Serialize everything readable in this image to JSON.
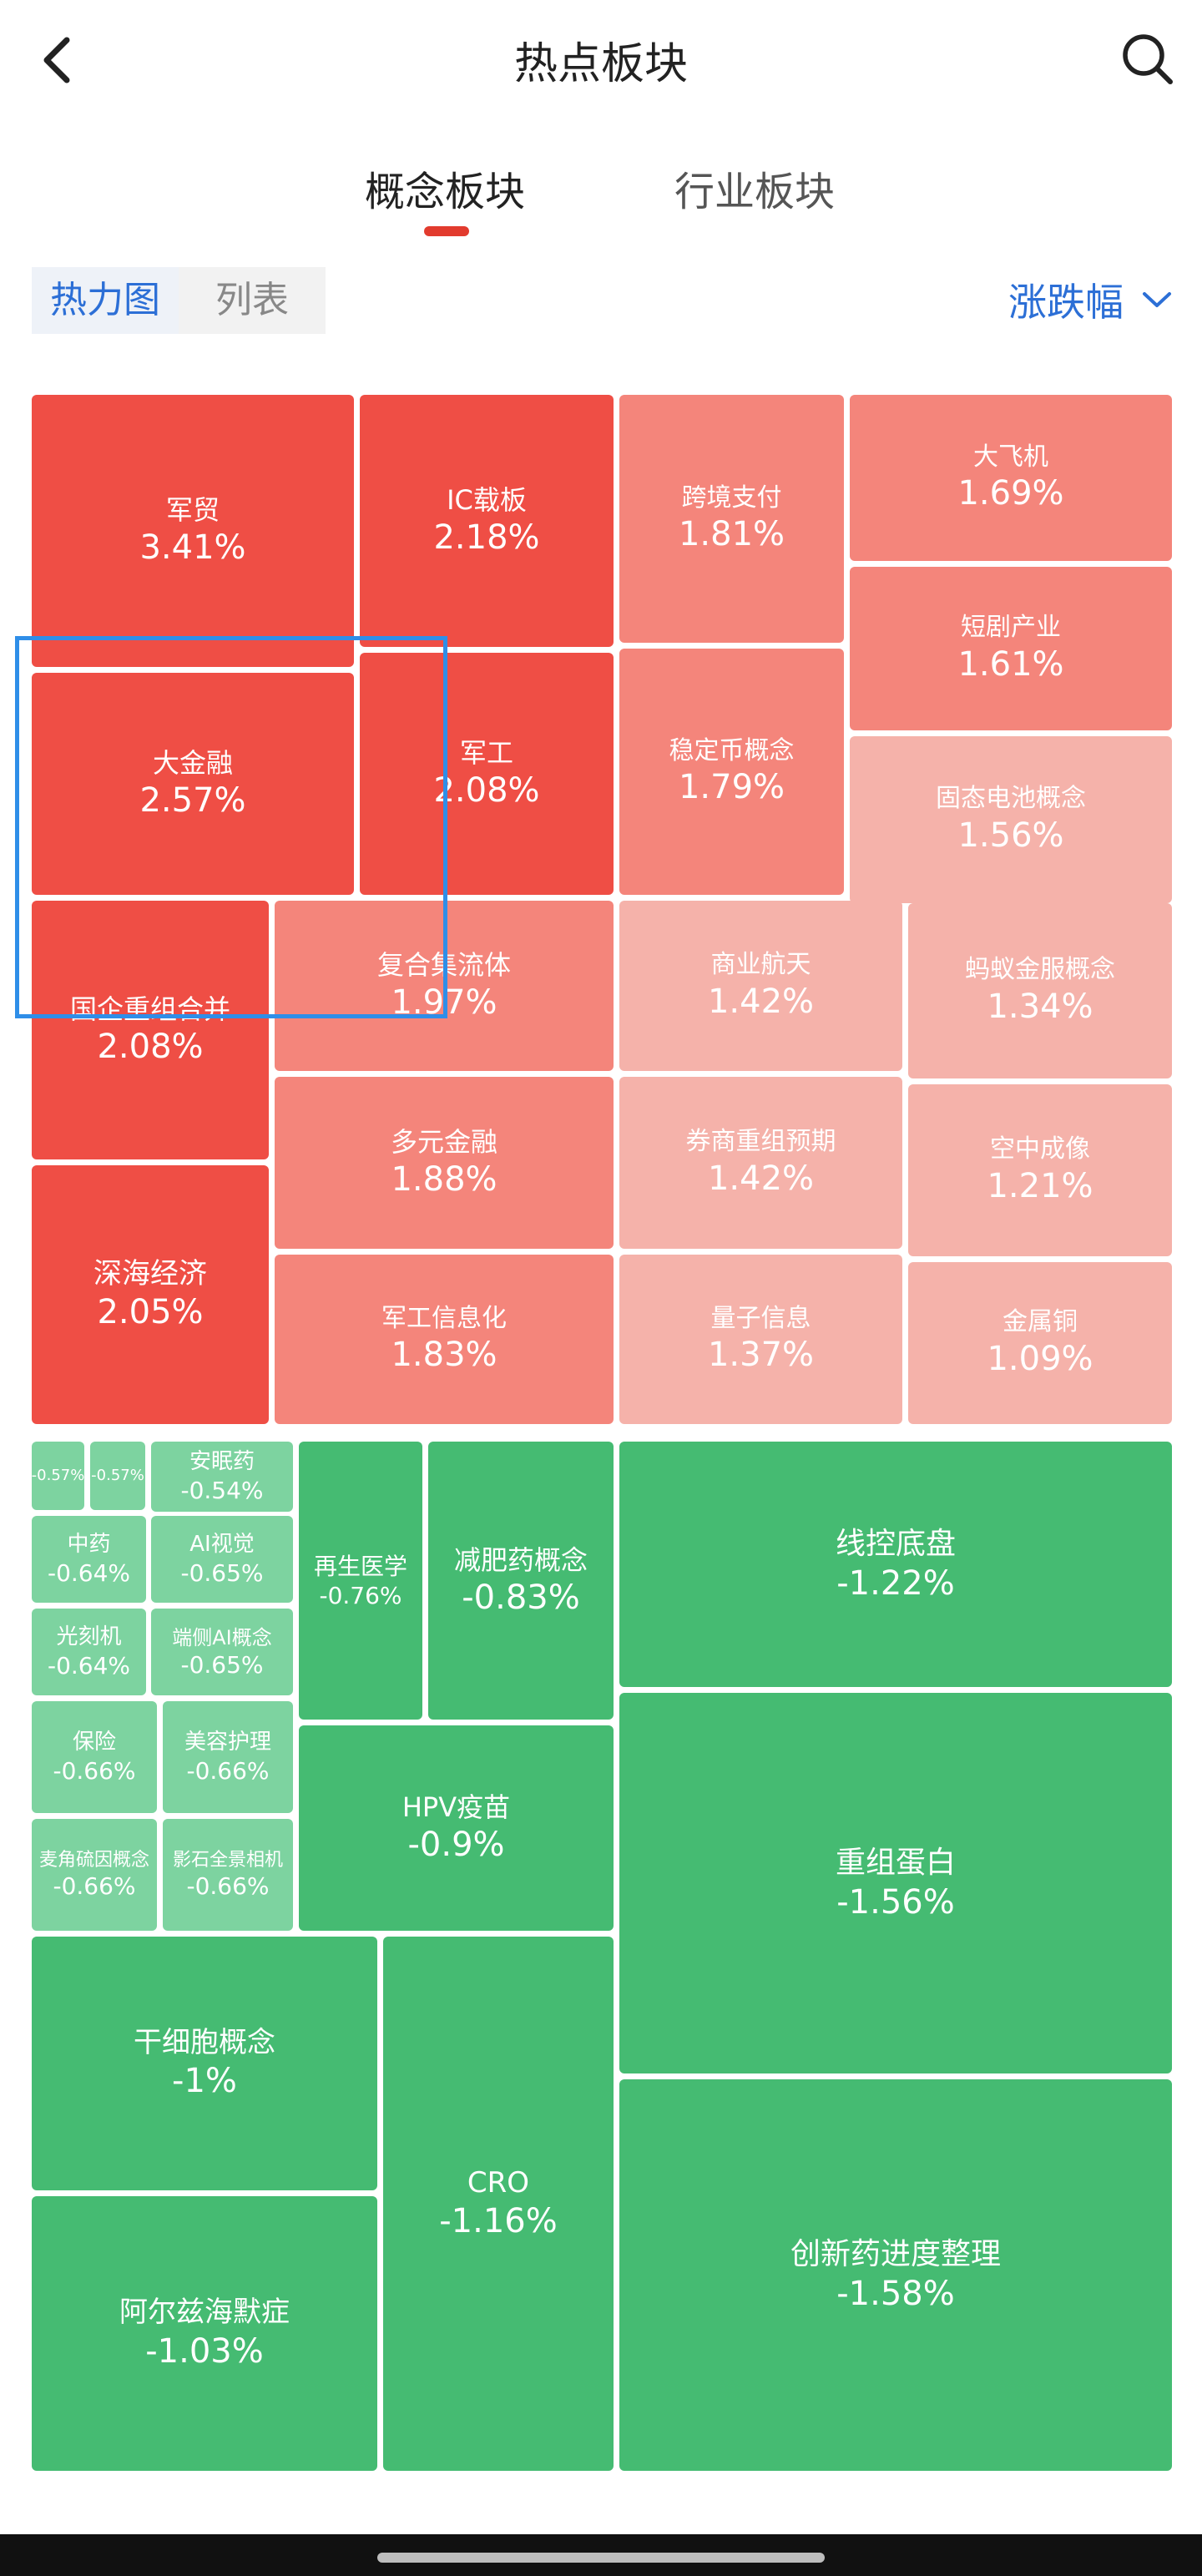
{
  "header": {
    "title": "热点板块"
  },
  "tabs": [
    {
      "label": "概念板块",
      "active": true
    },
    {
      "label": "行业板块",
      "active": false
    }
  ],
  "view_toggle": [
    {
      "label": "热力图",
      "active": true
    },
    {
      "label": "列表",
      "active": false
    }
  ],
  "sort": {
    "label": "涨跌幅"
  },
  "colors": {
    "accent_blue": "#2c6fd6",
    "tab_underline": "#e23b2e",
    "up_strong": "#ef4e45",
    "up_mid": "#f4857b",
    "up_light": "#f5b2aa",
    "down_strong": "#45bb72",
    "down_light": "#7dd3a0",
    "selection_border": "#2f8ee8"
  },
  "tiles": [
    {
      "name": "军贸",
      "value": "3.41%"
    },
    {
      "name": "IC载板",
      "value": "2.18%"
    },
    {
      "name": "跨境支付",
      "value": "1.81%"
    },
    {
      "name": "大飞机",
      "value": "1.69%"
    },
    {
      "name": "短剧产业",
      "value": "1.61%"
    },
    {
      "name": "大金融",
      "value": "2.57%"
    },
    {
      "name": "军工",
      "value": "2.08%"
    },
    {
      "name": "稳定币概念",
      "value": "1.79%"
    },
    {
      "name": "固态电池概念",
      "value": "1.56%"
    },
    {
      "name": "国企重组合并",
      "value": "2.08%"
    },
    {
      "name": "复合集流体",
      "value": "1.97%"
    },
    {
      "name": "商业航天",
      "value": "1.42%"
    },
    {
      "name": "蚂蚁金服概念",
      "value": "1.34%"
    },
    {
      "name": "多元金融",
      "value": "1.88%"
    },
    {
      "name": "券商重组预期",
      "value": "1.42%"
    },
    {
      "name": "空中成像",
      "value": "1.21%"
    },
    {
      "name": "深海经济",
      "value": "2.05%"
    },
    {
      "name": "军工信息化",
      "value": "1.83%"
    },
    {
      "name": "量子信息",
      "value": "1.37%"
    },
    {
      "name": "金属铜",
      "value": "1.09%"
    },
    {
      "name": "",
      "value": "-0.57%"
    },
    {
      "name": "",
      "value": "-0.57%"
    },
    {
      "name": "安眠药",
      "value": "-0.54%"
    },
    {
      "name": "中药",
      "value": "-0.64%"
    },
    {
      "name": "AI视觉",
      "value": "-0.65%"
    },
    {
      "name": "光刻机",
      "value": "-0.64%"
    },
    {
      "name": "端侧AI概念",
      "value": "-0.65%"
    },
    {
      "name": "保险",
      "value": "-0.66%"
    },
    {
      "name": "美容护理",
      "value": "-0.66%"
    },
    {
      "name": "麦角硫因概念",
      "value": "-0.66%"
    },
    {
      "name": "影石全景相机",
      "value": "-0.66%"
    },
    {
      "name": "再生医学",
      "value": "-0.76%"
    },
    {
      "name": "减肥药概念",
      "value": "-0.83%"
    },
    {
      "name": "HPV疫苗",
      "value": "-0.9%"
    },
    {
      "name": "线控底盘",
      "value": "-1.22%"
    },
    {
      "name": "重组蛋白",
      "value": "-1.56%"
    },
    {
      "name": "干细胞概念",
      "value": "-1%"
    },
    {
      "name": "CRO",
      "value": "-1.16%"
    },
    {
      "name": "阿尔兹海默症",
      "value": "-1.03%"
    },
    {
      "name": "创新药进度整理",
      "value": "-1.58%"
    }
  ]
}
